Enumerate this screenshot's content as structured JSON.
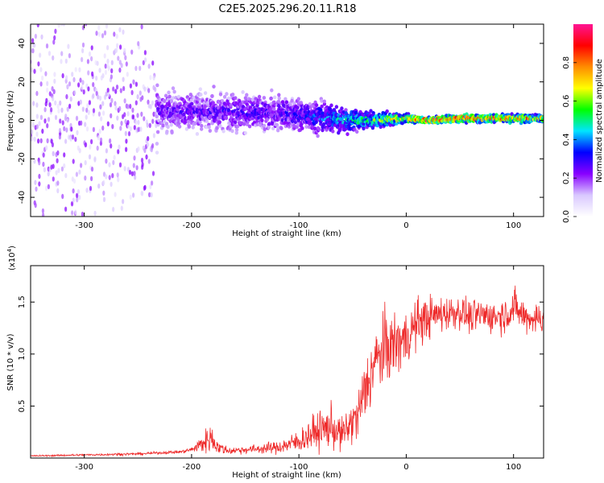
{
  "title": "C2E5.2025.296.20.11.R18",
  "colors": {
    "snr_line": "#ee2a2a",
    "colormap": [
      "#ffffff",
      "#d9c8ff",
      "#8800ff",
      "#0000ff",
      "#00e5ff",
      "#00ff00",
      "#ffff00",
      "#ff8c00",
      "#ff0000",
      "#ff1493"
    ]
  },
  "chart_data": [
    {
      "type": "heatmap",
      "title": "C2E5.2025.296.20.11.R18",
      "xlabel": "Height of straight line (km)",
      "ylabel": "Frequency (Hz)",
      "xlim": [
        -350,
        128
      ],
      "ylim": [
        -50,
        50
      ],
      "xticks": [
        -300,
        -200,
        -100,
        0,
        100
      ],
      "yticks": [
        -40,
        -20,
        0,
        20,
        40
      ],
      "xtick_labels": [
        "-300",
        "-200",
        "-100",
        "0",
        "100"
      ],
      "ytick_labels": [
        "-40",
        "-20",
        "0",
        "20",
        "40"
      ],
      "colorbar": {
        "label": "Normalized spectral amplitude",
        "range": [
          0,
          1
        ],
        "ticks": [
          0.0,
          0.2,
          0.4,
          0.6,
          0.8
        ],
        "tick_labels": [
          "0.0",
          "0.2",
          "0.4",
          "0.6",
          "0.8"
        ]
      },
      "description_points": [
        {
          "x": -350,
          "center": 0,
          "spread": 50,
          "amplitude": 0.12
        },
        {
          "x": -240,
          "center": 0,
          "spread": 50,
          "amplitude": 0.15
        },
        {
          "x": -230,
          "center": 5,
          "spread": 10,
          "amplitude": 0.25
        },
        {
          "x": -150,
          "center": 4,
          "spread": 10,
          "amplitude": 0.28
        },
        {
          "x": -100,
          "center": 3,
          "spread": 9,
          "amplitude": 0.3
        },
        {
          "x": -60,
          "center": 0,
          "spread": 7,
          "amplitude": 0.45
        },
        {
          "x": -30,
          "center": 0,
          "spread": 4,
          "amplitude": 0.55
        },
        {
          "x": 0,
          "center": 1,
          "spread": 2,
          "amplitude": 0.75
        },
        {
          "x": 20,
          "center": 0,
          "spread": 1.5,
          "amplitude": 0.95
        },
        {
          "x": 50,
          "center": 1,
          "spread": 2,
          "amplitude": 0.85
        },
        {
          "x": 100,
          "center": 1,
          "spread": 2,
          "amplitude": 0.8
        },
        {
          "x": 128,
          "center": 1,
          "spread": 2,
          "amplitude": 0.75
        }
      ]
    },
    {
      "type": "line",
      "xlabel": "Height of straight line (km)",
      "ylabel": "SNR (10 * v/v)",
      "y_multiplier_label": "(x10",
      "y_multiplier_exp": "4",
      "y_multiplier_close": ")",
      "xlim": [
        -350,
        128
      ],
      "ylim": [
        0,
        18500
      ],
      "xticks": [
        -300,
        -200,
        -100,
        0,
        100
      ],
      "yticks": [
        5000,
        10000,
        15000
      ],
      "xtick_labels": [
        "-300",
        "-200",
        "-100",
        "0",
        "100"
      ],
      "ytick_labels": [
        "0.5",
        "1.0",
        "1.5"
      ],
      "series": [
        {
          "name": "SNR",
          "x": [
            -350,
            -300,
            -250,
            -210,
            -200,
            -190,
            -182,
            -175,
            -165,
            -150,
            -120,
            -100,
            -85,
            -70,
            -60,
            -50,
            -45,
            -40,
            -30,
            -20,
            -10,
            0,
            10,
            20,
            30,
            40,
            50,
            60,
            70,
            80,
            90,
            95,
            100,
            110,
            120,
            128
          ],
          "y": [
            200,
            300,
            400,
            600,
            800,
            1400,
            2000,
            1000,
            700,
            800,
            1000,
            1600,
            2500,
            3000,
            2200,
            3500,
            4000,
            6000,
            9000,
            10500,
            11000,
            11500,
            13000,
            13500,
            13800,
            14000,
            14100,
            13500,
            13800,
            13600,
            13700,
            14000,
            14500,
            13600,
            13400,
            13500
          ],
          "noise": [
            60,
            80,
            100,
            120,
            200,
            800,
            1200,
            500,
            300,
            300,
            500,
            900,
            1400,
            1700,
            1300,
            1700,
            2000,
            2600,
            2800,
            2800,
            2700,
            2200,
            2000,
            1700,
            1500,
            1400,
            1300,
            1300,
            1300,
            1300,
            1400,
            1400,
            1500,
            1300,
            1300,
            1300
          ]
        }
      ]
    }
  ]
}
